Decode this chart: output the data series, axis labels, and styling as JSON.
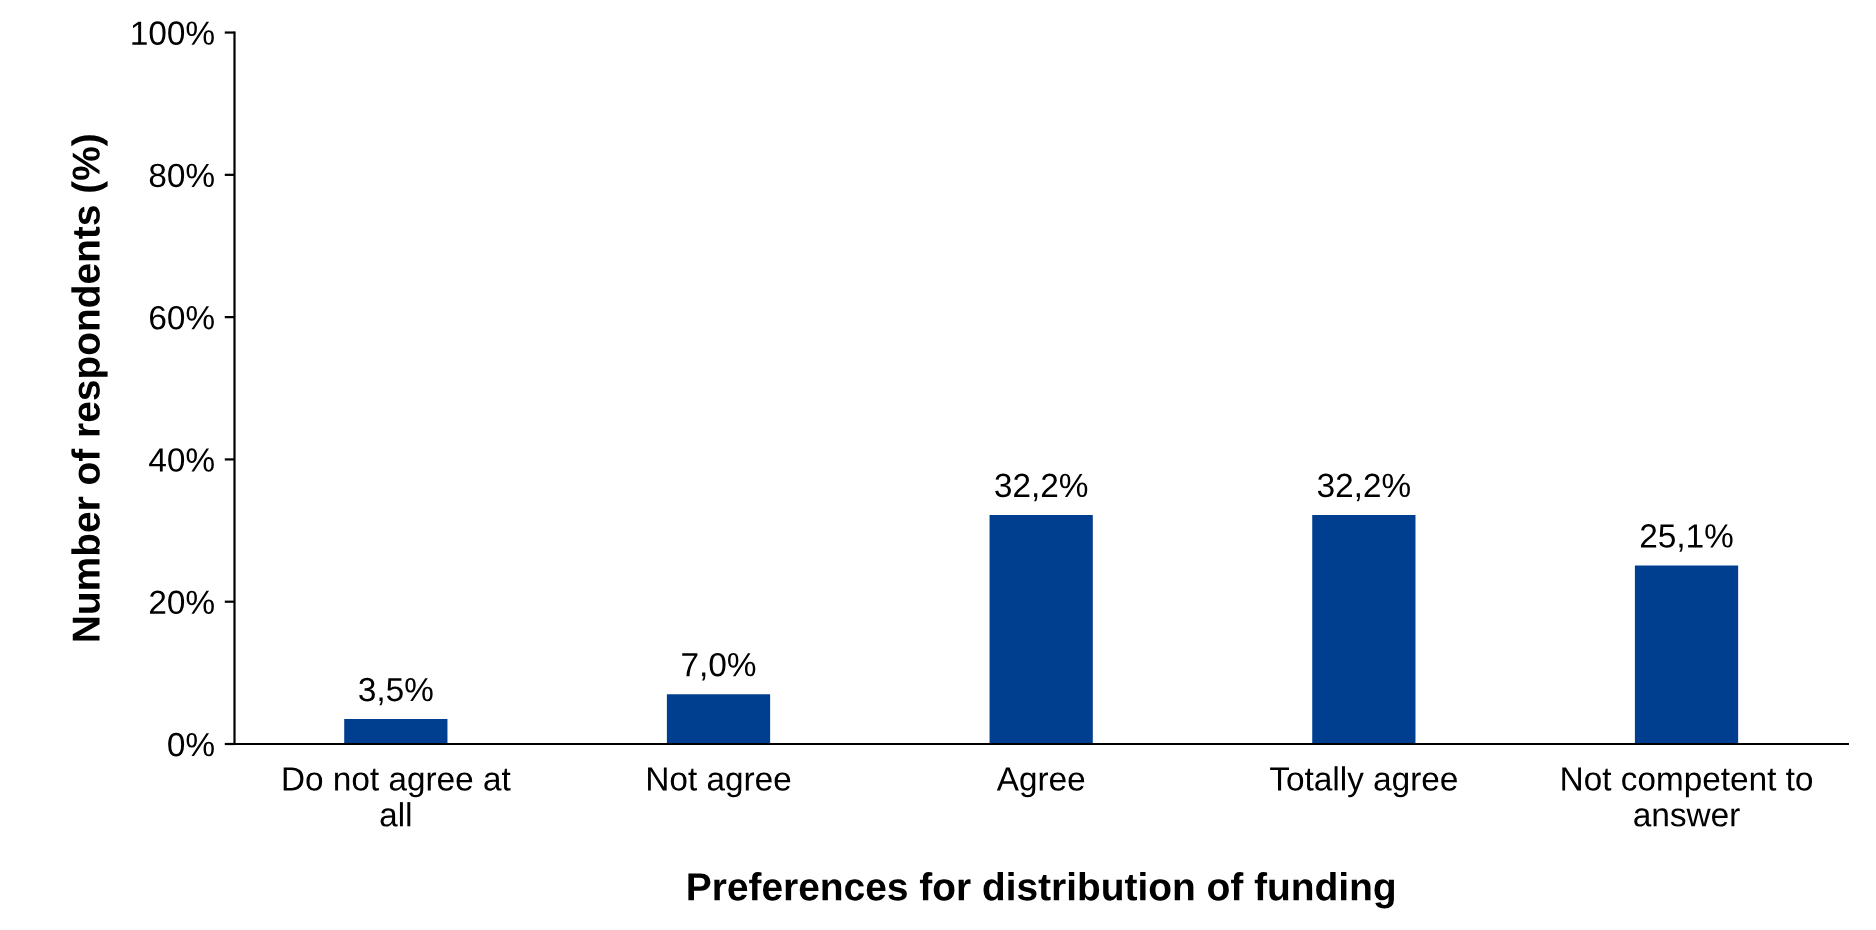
{
  "chart_data": {
    "type": "bar",
    "xlabel": "Preferences for distribution of funding",
    "ylabel": "Number of respondents (%)",
    "categories": [
      "Do not agree at\nall",
      "Not agree",
      "Agree",
      "Totally agree",
      "Not competent to\nanswer"
    ],
    "values": [
      3.5,
      7.0,
      32.2,
      32.2,
      25.1
    ],
    "value_labels": [
      "3,5%",
      "7,0%",
      "32,2%",
      "32,2%",
      "25,1%"
    ],
    "color": "#003f8f",
    "ylim": [
      0,
      100
    ],
    "yticks": [
      {
        "value": 0,
        "label": "0%"
      },
      {
        "value": 20,
        "label": "20%"
      },
      {
        "value": 40,
        "label": "40%"
      },
      {
        "value": 60,
        "label": "60%"
      },
      {
        "value": 80,
        "label": "80%"
      },
      {
        "value": 100,
        "label": "100%"
      }
    ],
    "grid": false,
    "legend": false
  }
}
